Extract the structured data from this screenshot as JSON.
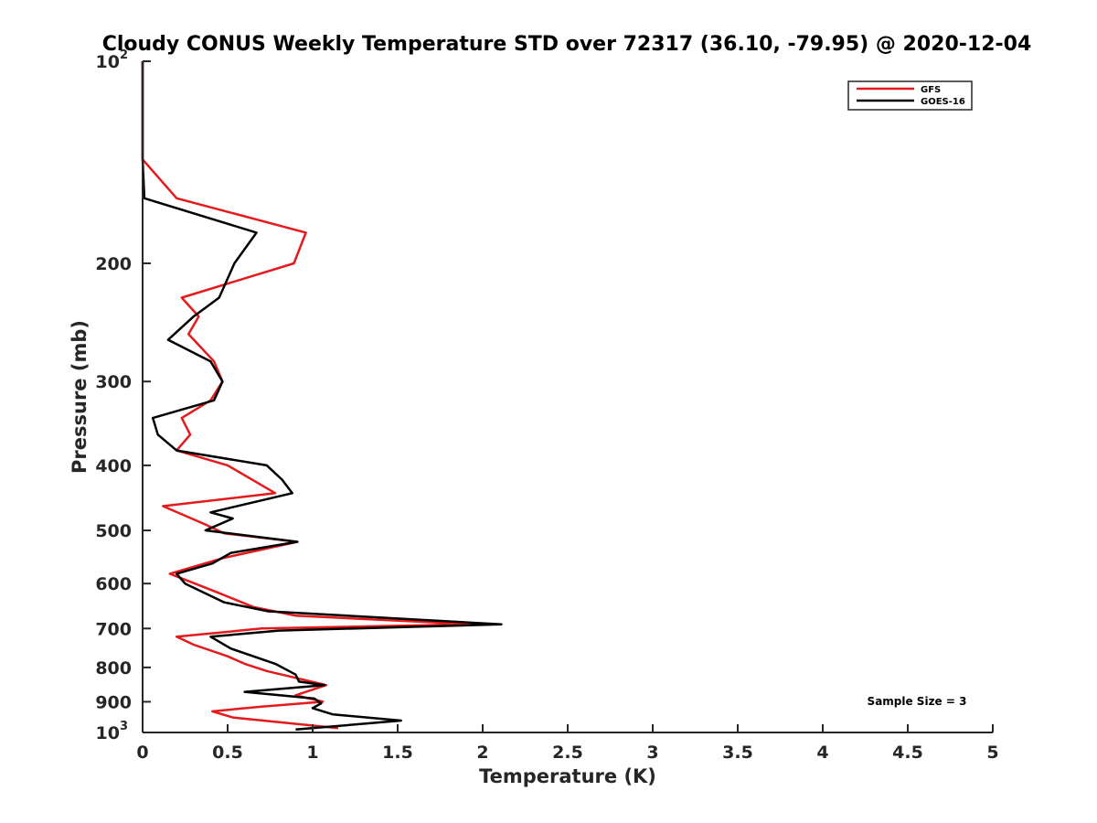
{
  "chart_data": {
    "type": "line",
    "title": "Cloudy CONUS Weekly Temperature STD over 72317 (36.10, -79.95) @ 2020-12-04",
    "xlabel": "Temperature (K)",
    "ylabel": "Pressure (mb)",
    "xlim": [
      0,
      5
    ],
    "ylim": [
      100,
      1000
    ],
    "y_scale": "log",
    "y_reversed": true,
    "x_ticks": [
      "0",
      "0.5",
      "1",
      "1.5",
      "2",
      "2.5",
      "3",
      "3.5",
      "4",
      "4.5",
      "5"
    ],
    "y_ticks": [
      {
        "value": 100,
        "base": "10",
        "exp": "2"
      },
      {
        "value": 200,
        "label": "200"
      },
      {
        "value": 300,
        "label": "300"
      },
      {
        "value": 400,
        "label": "400"
      },
      {
        "value": 500,
        "label": "500"
      },
      {
        "value": 600,
        "label": "600"
      },
      {
        "value": 700,
        "label": "700"
      },
      {
        "value": 800,
        "label": "800"
      },
      {
        "value": 900,
        "label": "900"
      },
      {
        "value": 1000,
        "base": "10",
        "exp": "3"
      }
    ],
    "grid": false,
    "legend_position": "top-right",
    "annotation": "Sample Size = 3",
    "series": [
      {
        "name": "GFS",
        "color": "#e41a1c",
        "points": [
          [
            0.0,
            100
          ],
          [
            0.0,
            120
          ],
          [
            0.0,
            140
          ],
          [
            0.2,
            160
          ],
          [
            0.96,
            180
          ],
          [
            0.89,
            200
          ],
          [
            0.23,
            225
          ],
          [
            0.33,
            240
          ],
          [
            0.27,
            255
          ],
          [
            0.42,
            280
          ],
          [
            0.47,
            300
          ],
          [
            0.4,
            320
          ],
          [
            0.23,
            340
          ],
          [
            0.28,
            360
          ],
          [
            0.2,
            380
          ],
          [
            0.5,
            400
          ],
          [
            0.78,
            440
          ],
          [
            0.12,
            460
          ],
          [
            0.37,
            490
          ],
          [
            0.48,
            505
          ],
          [
            0.91,
            520
          ],
          [
            0.47,
            550
          ],
          [
            0.16,
            580
          ],
          [
            0.45,
            620
          ],
          [
            0.65,
            650
          ],
          [
            0.9,
            670
          ],
          [
            1.95,
            690
          ],
          [
            0.7,
            700
          ],
          [
            0.2,
            720
          ],
          [
            0.3,
            740
          ],
          [
            0.5,
            770
          ],
          [
            0.6,
            790
          ],
          [
            0.73,
            810
          ],
          [
            1.08,
            850
          ],
          [
            0.9,
            880
          ],
          [
            1.06,
            900
          ],
          [
            0.7,
            915
          ],
          [
            0.41,
            930
          ],
          [
            0.53,
            950
          ],
          [
            1.15,
            985
          ]
        ]
      },
      {
        "name": "GOES-16",
        "color": "#000000",
        "points": [
          [
            0.0,
            100
          ],
          [
            0.0,
            120
          ],
          [
            0.0,
            140
          ],
          [
            0.01,
            160
          ],
          [
            0.67,
            180
          ],
          [
            0.54,
            200
          ],
          [
            0.45,
            225
          ],
          [
            0.3,
            240
          ],
          [
            0.15,
            260
          ],
          [
            0.4,
            280
          ],
          [
            0.47,
            300
          ],
          [
            0.42,
            320
          ],
          [
            0.06,
            340
          ],
          [
            0.09,
            360
          ],
          [
            0.2,
            380
          ],
          [
            0.73,
            400
          ],
          [
            0.82,
            420
          ],
          [
            0.88,
            440
          ],
          [
            0.4,
            470
          ],
          [
            0.53,
            480
          ],
          [
            0.37,
            500
          ],
          [
            0.91,
            520
          ],
          [
            0.52,
            540
          ],
          [
            0.41,
            560
          ],
          [
            0.2,
            580
          ],
          [
            0.25,
            600
          ],
          [
            0.48,
            640
          ],
          [
            0.74,
            660
          ],
          [
            2.11,
            690
          ],
          [
            0.8,
            705
          ],
          [
            0.4,
            720
          ],
          [
            0.52,
            750
          ],
          [
            0.78,
            790
          ],
          [
            0.9,
            820
          ],
          [
            0.92,
            840
          ],
          [
            1.07,
            850
          ],
          [
            0.6,
            870
          ],
          [
            1.01,
            890
          ],
          [
            1.05,
            905
          ],
          [
            1.0,
            920
          ],
          [
            1.12,
            940
          ],
          [
            1.52,
            960
          ],
          [
            0.9,
            990
          ]
        ]
      }
    ]
  }
}
